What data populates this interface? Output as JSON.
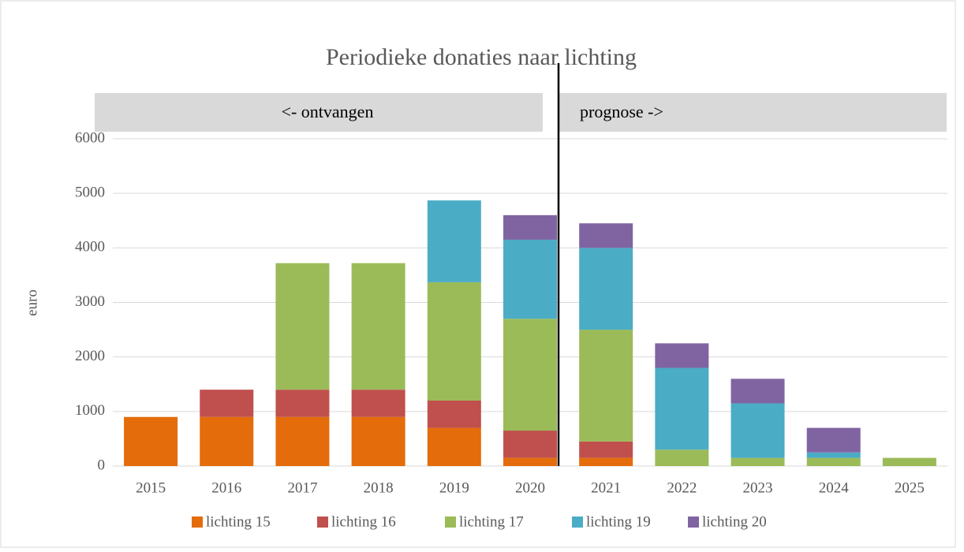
{
  "chart_data": {
    "type": "stacked_bar",
    "title": "Periodieke donaties naar lichting",
    "y_label": "euro",
    "annotations": [
      "<- ontvangen",
      "prognose ->"
    ],
    "categories": [
      "2015",
      "2016",
      "2017",
      "2018",
      "2019",
      "2020",
      "2021",
      "2022",
      "2023",
      "2024",
      "2025"
    ],
    "series": [
      {
        "name": "lichting 15",
        "color": "#e46c0a",
        "values": [
          900,
          900,
          900,
          900,
          700,
          150,
          150,
          null,
          null,
          null,
          null
        ]
      },
      {
        "name": "lichting 16",
        "color": "#c0504d",
        "values": [
          null,
          500,
          500,
          500,
          500,
          500,
          300,
          null,
          null,
          null,
          null
        ]
      },
      {
        "name": "lichting 17",
        "color": "#9bbb59",
        "values": [
          null,
          null,
          2320,
          2320,
          2170,
          2050,
          2050,
          300,
          150,
          150,
          150
        ]
      },
      {
        "name": "lichting 19",
        "color": "#4bacc6",
        "values": [
          null,
          null,
          null,
          null,
          1500,
          1450,
          1500,
          1500,
          1000,
          100,
          null
        ]
      },
      {
        "name": "lichting 20",
        "color": "#8064a2",
        "values": [
          null,
          null,
          null,
          null,
          null,
          450,
          450,
          450,
          450,
          450,
          null
        ]
      }
    ],
    "ylim": [
      0,
      6000
    ],
    "yticks": [
      0,
      1000,
      2000,
      3000,
      4000,
      5000,
      6000
    ],
    "grid": true,
    "legend": "bottom"
  }
}
